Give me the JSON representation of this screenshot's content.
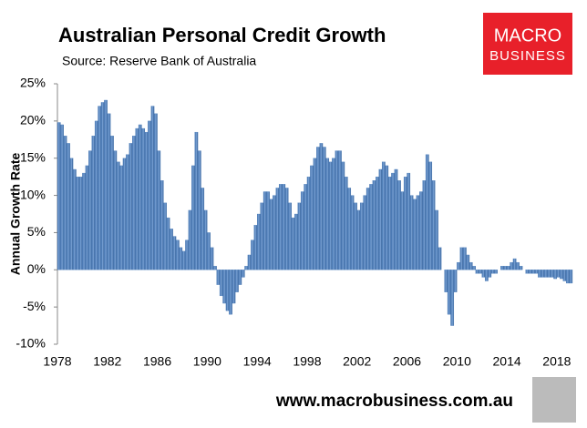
{
  "chart_data": {
    "type": "bar",
    "title": "Australian Personal Credit Growth",
    "subtitle": "Source: Reserve Bank of Australia",
    "y_label": "Annual Growth Rate",
    "color": "#4f81bd",
    "x": [
      1978,
      1978.25,
      1978.5,
      1978.75,
      1979,
      1979.25,
      1979.5,
      1979.75,
      1980,
      1980.25,
      1980.5,
      1980.75,
      1981,
      1981.25,
      1981.5,
      1981.75,
      1982,
      1982.25,
      1982.5,
      1982.75,
      1983,
      1983.25,
      1983.5,
      1983.75,
      1984,
      1984.25,
      1984.5,
      1984.75,
      1985,
      1985.25,
      1985.5,
      1985.75,
      1986,
      1986.25,
      1986.5,
      1986.75,
      1987,
      1987.25,
      1987.5,
      1987.75,
      1988,
      1988.25,
      1988.5,
      1988.75,
      1989,
      1989.25,
      1989.5,
      1989.75,
      1990,
      1990.25,
      1990.5,
      1990.75,
      1991,
      1991.25,
      1991.5,
      1991.75,
      1992,
      1992.25,
      1992.5,
      1992.75,
      1993,
      1993.25,
      1993.5,
      1993.75,
      1994,
      1994.25,
      1994.5,
      1994.75,
      1995,
      1995.25,
      1995.5,
      1995.75,
      1996,
      1996.25,
      1996.5,
      1996.75,
      1997,
      1997.25,
      1997.5,
      1997.75,
      1998,
      1998.25,
      1998.5,
      1998.75,
      1999,
      1999.25,
      1999.5,
      1999.75,
      2000,
      2000.25,
      2000.5,
      2000.75,
      2001,
      2001.25,
      2001.5,
      2001.75,
      2002,
      2002.25,
      2002.5,
      2002.75,
      2003,
      2003.25,
      2003.5,
      2003.75,
      2004,
      2004.25,
      2004.5,
      2004.75,
      2005,
      2005.25,
      2005.5,
      2005.75,
      2006,
      2006.25,
      2006.5,
      2006.75,
      2007,
      2007.25,
      2007.5,
      2007.75,
      2008,
      2008.25,
      2008.5,
      2008.75,
      2009,
      2009.25,
      2009.5,
      2009.75,
      2010,
      2010.25,
      2010.5,
      2010.75,
      2011,
      2011.25,
      2011.5,
      2011.75,
      2012,
      2012.25,
      2012.5,
      2012.75,
      2013,
      2013.25,
      2013.5,
      2013.75,
      2014,
      2014.25,
      2014.5,
      2014.75,
      2015,
      2015.25,
      2015.5,
      2015.75,
      2016,
      2016.25,
      2016.5,
      2016.75,
      2017,
      2017.25,
      2017.5,
      2017.75,
      2018,
      2018.25,
      2018.5,
      2018.75,
      2019
    ],
    "values": [
      19.8,
      19.5,
      18,
      17,
      15,
      13.5,
      12.5,
      12.5,
      13,
      14,
      16,
      18,
      20,
      22,
      22.5,
      22.8,
      21,
      18,
      16,
      14.5,
      14,
      15,
      15.5,
      17,
      18,
      19,
      19.5,
      19,
      18.5,
      20,
      22,
      21,
      16,
      12,
      9,
      7,
      5.5,
      4.5,
      4,
      3,
      2.5,
      4,
      8,
      14,
      18.5,
      16,
      11,
      8,
      5,
      3,
      0.5,
      -2,
      -3.5,
      -4.5,
      -5.5,
      -6,
      -4.5,
      -3,
      -2,
      -1,
      0.5,
      2,
      4,
      6,
      7.5,
      9,
      10.5,
      10.5,
      9.5,
      10,
      11,
      11.5,
      11.5,
      11,
      9,
      7,
      7.5,
      9,
      10.5,
      11.5,
      12.5,
      14,
      15,
      16.5,
      17,
      16.5,
      15,
      14.5,
      15,
      16,
      16,
      14.5,
      12.5,
      11,
      10,
      9,
      8,
      9,
      10,
      11,
      11.5,
      12,
      12.5,
      13.5,
      14.5,
      14,
      12.5,
      13,
      13.5,
      12,
      10.5,
      12.5,
      13,
      10,
      9.5,
      10,
      10.5,
      12,
      15.5,
      14.5,
      12,
      8,
      3,
      0,
      -3,
      -6,
      -7.5,
      -3,
      1,
      3,
      3,
      2,
      1,
      0.5,
      -0.5,
      -0.5,
      -1,
      -1.5,
      -1,
      -0.5,
      -0.5,
      0,
      0.5,
      0.5,
      0.5,
      1,
      1.5,
      1,
      0.5,
      0,
      -0.5,
      -0.5,
      -0.5,
      -0.5,
      -1,
      -1,
      -1,
      -1,
      -1,
      -1.2,
      -1,
      -1.2,
      -1.5,
      -1.8,
      -1.8
    ],
    "xlim": [
      1978,
      2019.25
    ],
    "xticks": [
      1978,
      1982,
      1986,
      1990,
      1994,
      1998,
      2002,
      2006,
      2010,
      2014,
      2018
    ],
    "ylim": [
      -10,
      25
    ],
    "yticks": [
      {
        "value": -10,
        "label": "-10%"
      },
      {
        "value": -5,
        "label": "-5%"
      },
      {
        "value": 0,
        "label": "0%"
      },
      {
        "value": 5,
        "label": "5%"
      },
      {
        "value": 10,
        "label": "10%"
      },
      {
        "value": 15,
        "label": "15%"
      },
      {
        "value": 20,
        "label": "20%"
      },
      {
        "value": 25,
        "label": "25%"
      }
    ],
    "grid": false
  },
  "logo": {
    "line1": "MACRO",
    "line2": "BUSINESS"
  },
  "footer": "www.macrobusiness.com.au"
}
